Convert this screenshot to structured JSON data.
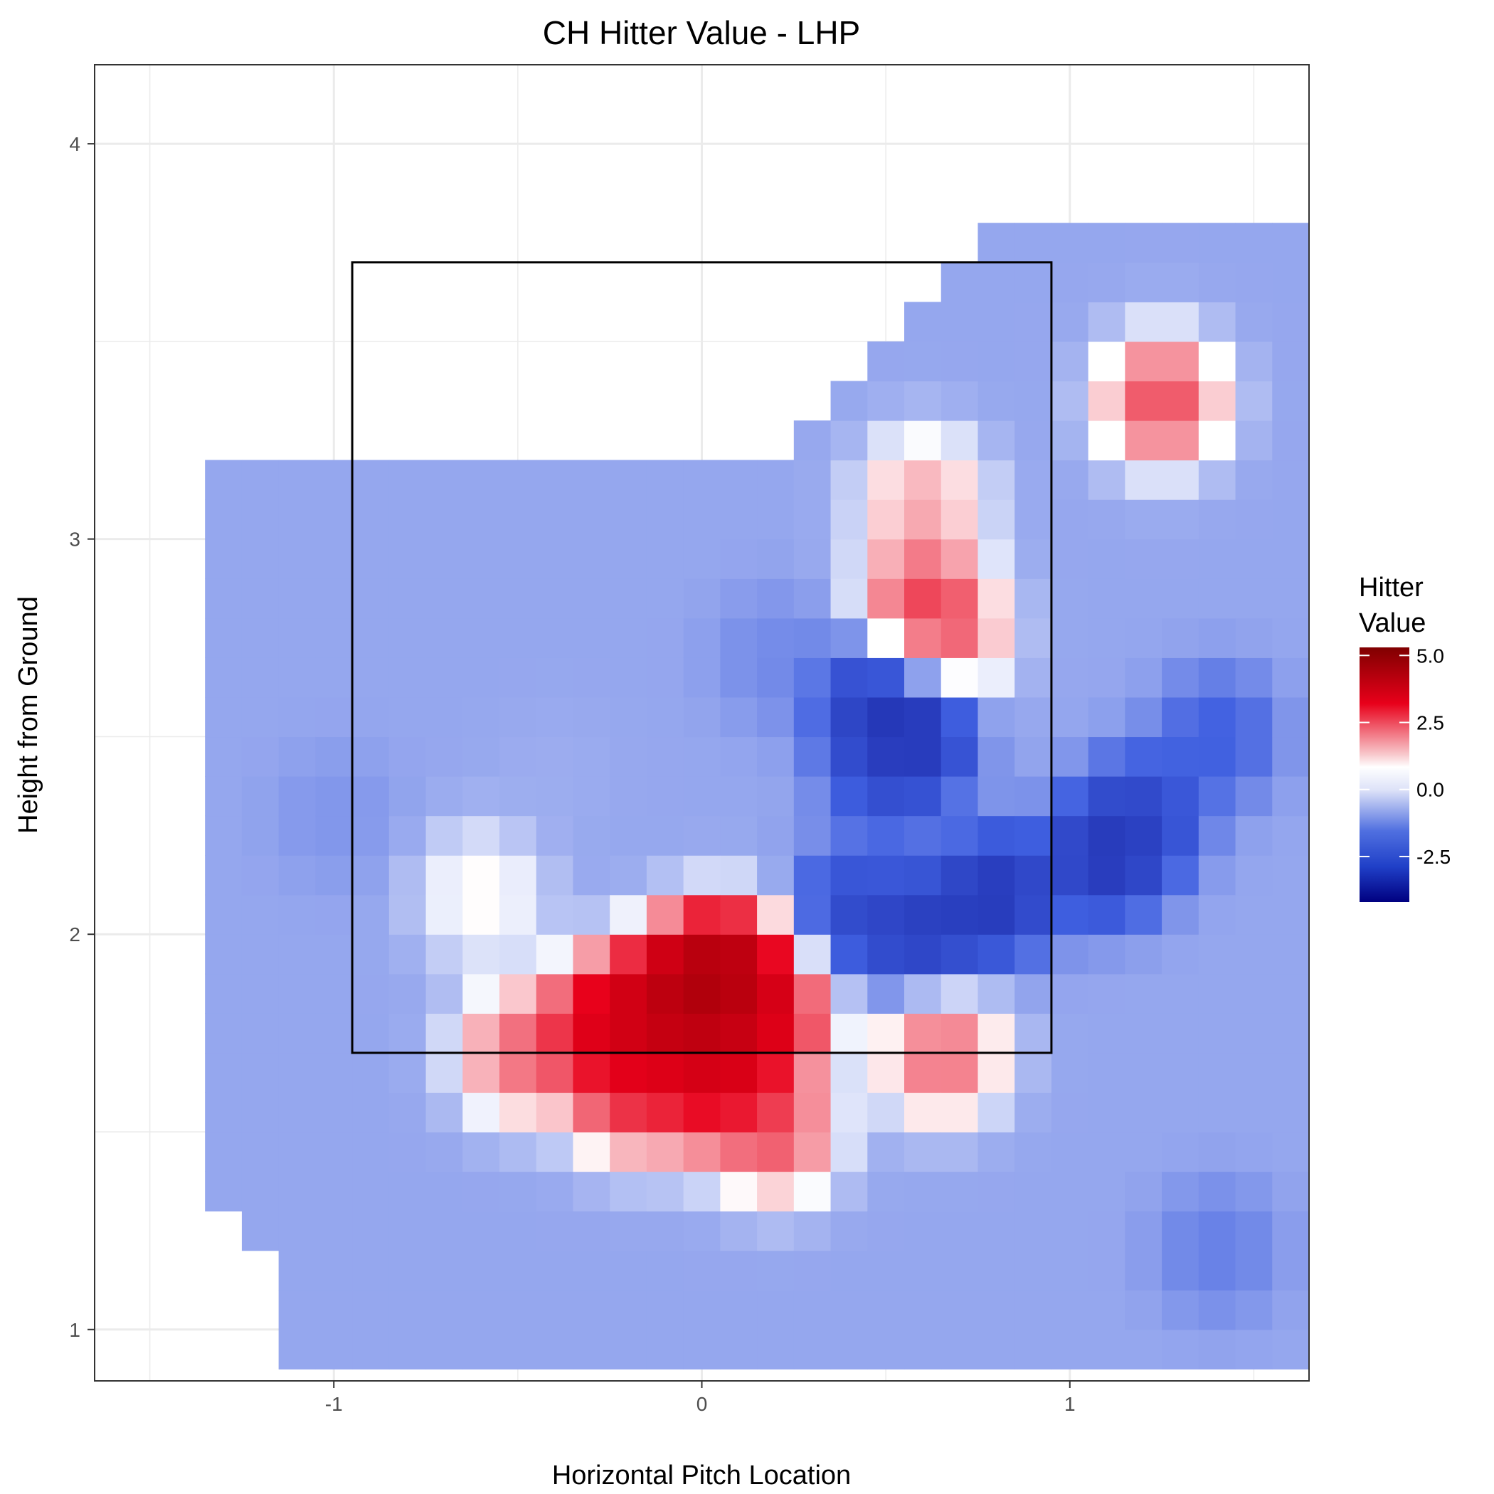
{
  "chart_data": {
    "type": "heatmap",
    "title": "CH Hitter Value - LHP",
    "xlabel": "Horizontal Pitch Location",
    "ylabel": "Height from Ground",
    "xlim": [
      -1.65,
      1.65
    ],
    "ylim": [
      0.87,
      4.2
    ],
    "x_ticks": [
      -1,
      0,
      1
    ],
    "y_ticks": [
      1,
      2,
      3,
      4
    ],
    "x_tick_labels": [
      "-1",
      "0",
      "1"
    ],
    "y_tick_labels": [
      "1",
      "2",
      "3",
      "4"
    ],
    "grid": true,
    "strike_zone": {
      "x": [
        -0.95,
        0.95
      ],
      "y": [
        1.7,
        3.7
      ]
    },
    "legend": {
      "title": [
        "Hitter",
        "Value"
      ],
      "position": "right",
      "range": [
        -4.2,
        5.3
      ],
      "ticks": [
        5.0,
        2.5,
        0.0,
        -2.5
      ],
      "tick_labels": [
        "5.0",
        "2.5",
        "0.0",
        "-2.5"
      ],
      "colors": {
        "low": "#000080",
        "mid_low": "#3f5fe0",
        "mid": "#ffffff",
        "mid_high": "#e8001a",
        "high": "#800000"
      }
    },
    "tiles": [
      {
        "x": -0.0,
        "y": 1.9,
        "value": 5.2
      },
      {
        "x": 0.1,
        "y": 1.9,
        "value": 5.0
      },
      {
        "x": -0.1,
        "y": 1.8,
        "value": 4.4
      },
      {
        "x": 0.0,
        "y": 1.8,
        "value": 4.6
      },
      {
        "x": -0.2,
        "y": 1.8,
        "value": 4.0
      },
      {
        "x": -0.3,
        "y": 1.75,
        "value": 3.6
      },
      {
        "x": 0.1,
        "y": 1.7,
        "value": 4.0
      },
      {
        "x": 0.0,
        "y": 1.6,
        "value": 3.6
      },
      {
        "x": -0.2,
        "y": 1.6,
        "value": 3.2
      },
      {
        "x": 0.2,
        "y": 1.8,
        "value": 3.4
      },
      {
        "x": 0.6,
        "y": 2.85,
        "value": 2.8
      },
      {
        "x": 0.65,
        "y": 2.75,
        "value": 2.6
      },
      {
        "x": 0.65,
        "y": 1.7,
        "value": 2.6
      },
      {
        "x": 1.25,
        "y": 3.35,
        "value": 3.0
      },
      {
        "x": -0.5,
        "y": 1.7,
        "value": 2.4
      },
      {
        "x": 0.2,
        "y": 1.5,
        "value": 2.8
      },
      {
        "x": 0.55,
        "y": 2.55,
        "value": -4.0
      },
      {
        "x": 0.55,
        "y": 2.5,
        "value": -3.2
      },
      {
        "x": 0.8,
        "y": 2.1,
        "value": -3.6
      },
      {
        "x": 0.6,
        "y": 2.0,
        "value": -3.4
      },
      {
        "x": 1.1,
        "y": 2.2,
        "value": -3.6
      },
      {
        "x": 1.2,
        "y": 2.3,
        "value": -3.0
      },
      {
        "x": 0.4,
        "y": 2.05,
        "value": -3.0
      },
      {
        "x": -0.6,
        "y": 2.1,
        "value": 0.6
      },
      {
        "x": 0.45,
        "y": 2.6,
        "value": -2.8
      },
      {
        "x": 0.5,
        "y": 2.4,
        "value": -2.6
      },
      {
        "x": 1.4,
        "y": 2.5,
        "value": -2.4
      },
      {
        "x": -0.4,
        "y": 2.4,
        "value": -1.0
      },
      {
        "x": -1.0,
        "y": 2.3,
        "value": -1.4
      },
      {
        "x": 0.2,
        "y": 2.7,
        "value": -1.6
      },
      {
        "x": 0.6,
        "y": 3.1,
        "value": 1.6
      },
      {
        "x": 1.4,
        "y": 1.2,
        "value": -1.8
      }
    ]
  }
}
